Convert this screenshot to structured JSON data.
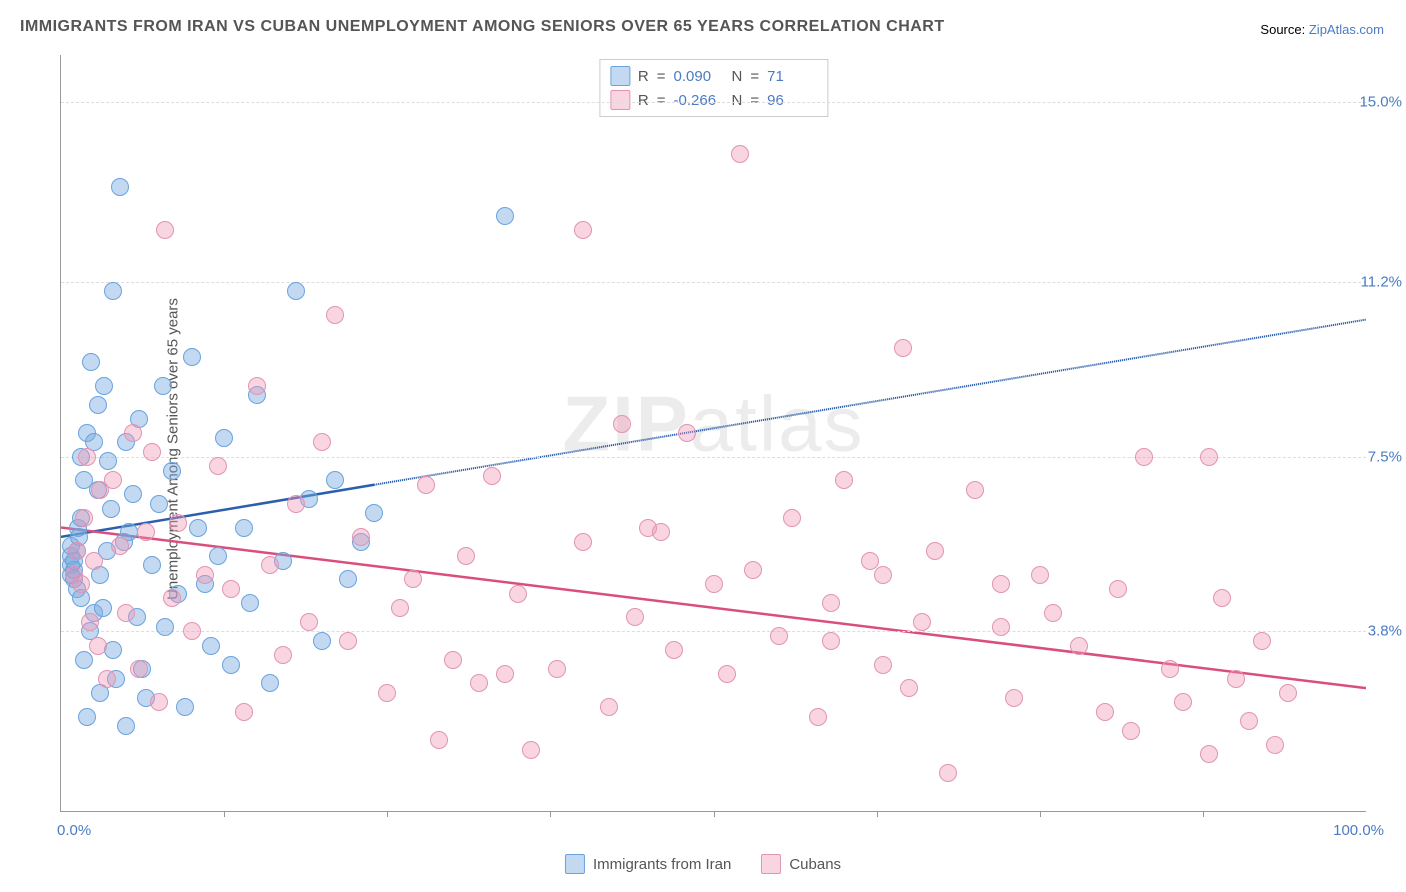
{
  "title": "IMMIGRANTS FROM IRAN VS CUBAN UNEMPLOYMENT AMONG SENIORS OVER 65 YEARS CORRELATION CHART",
  "source_label": "Source:",
  "source_link_text": "ZipAtlas.com",
  "watermark": "ZIPatlas",
  "chart": {
    "type": "scatter",
    "background_color": "#ffffff",
    "grid_color": "#dddddd",
    "axis_color": "#999999",
    "point_radius": 9,
    "point_opacity": 0.55,
    "xlim": [
      0,
      100
    ],
    "ylim": [
      0,
      16
    ],
    "y_gridlines": [
      3.8,
      7.5,
      11.2,
      15.0
    ],
    "y_tick_labels": [
      "3.8%",
      "7.5%",
      "11.2%",
      "15.0%"
    ],
    "x_tick_positions": [
      12.5,
      25,
      37.5,
      50,
      62.5,
      75,
      87.5
    ],
    "x_min_label": "0.0%",
    "x_max_label": "100.0%",
    "y_axis_title": "Unemployment Among Seniors over 65 years",
    "series": [
      {
        "key": "iran",
        "label": "Immigrants from Iran",
        "color_fill": "rgba(120,170,225,0.45)",
        "color_stroke": "#6aa3de",
        "line_color": "#2b5fae",
        "R": "0.090",
        "N": "71",
        "trend": {
          "x1": 0,
          "y1": 5.8,
          "x2": 100,
          "y2": 10.4,
          "solid_until_x": 24
        },
        "points": [
          [
            0.8,
            5.0
          ],
          [
            0.8,
            5.2
          ],
          [
            0.8,
            5.4
          ],
          [
            0.8,
            5.6
          ],
          [
            1.0,
            4.9
          ],
          [
            1.0,
            5.1
          ],
          [
            1.0,
            5.3
          ],
          [
            1.2,
            5.5
          ],
          [
            1.2,
            4.7
          ],
          [
            1.3,
            6.0
          ],
          [
            1.4,
            5.8
          ],
          [
            1.5,
            4.5
          ],
          [
            1.5,
            6.2
          ],
          [
            1.8,
            3.2
          ],
          [
            1.8,
            7.0
          ],
          [
            2.0,
            8.0
          ],
          [
            2.0,
            2.0
          ],
          [
            2.2,
            3.8
          ],
          [
            2.3,
            9.5
          ],
          [
            2.5,
            4.2
          ],
          [
            2.5,
            7.8
          ],
          [
            2.8,
            8.6
          ],
          [
            3.0,
            5.0
          ],
          [
            3.0,
            2.5
          ],
          [
            3.2,
            4.3
          ],
          [
            3.3,
            9.0
          ],
          [
            3.5,
            5.5
          ],
          [
            3.8,
            6.4
          ],
          [
            4.0,
            3.4
          ],
          [
            4.0,
            11.0
          ],
          [
            4.2,
            2.8
          ],
          [
            4.5,
            13.2
          ],
          [
            5.0,
            1.8
          ],
          [
            5.0,
            7.8
          ],
          [
            5.2,
            5.9
          ],
          [
            5.5,
            6.7
          ],
          [
            5.8,
            4.1
          ],
          [
            6.0,
            8.3
          ],
          [
            6.5,
            2.4
          ],
          [
            7.0,
            5.2
          ],
          [
            7.5,
            6.5
          ],
          [
            8.0,
            3.9
          ],
          [
            8.5,
            7.2
          ],
          [
            9.0,
            4.6
          ],
          [
            9.5,
            2.2
          ],
          [
            10.0,
            9.6
          ],
          [
            10.5,
            6.0
          ],
          [
            11.0,
            4.8
          ],
          [
            11.5,
            3.5
          ],
          [
            12.0,
            5.4
          ],
          [
            12.5,
            7.9
          ],
          [
            13.0,
            3.1
          ],
          [
            14.0,
            6.0
          ],
          [
            14.5,
            4.4
          ],
          [
            15.0,
            8.8
          ],
          [
            16.0,
            2.7
          ],
          [
            17.0,
            5.3
          ],
          [
            18.0,
            11.0
          ],
          [
            19.0,
            6.6
          ],
          [
            20.0,
            3.6
          ],
          [
            21.0,
            7.0
          ],
          [
            22.0,
            4.9
          ],
          [
            23.0,
            5.7
          ],
          [
            24.0,
            6.3
          ],
          [
            1.5,
            7.5
          ],
          [
            2.8,
            6.8
          ],
          [
            3.6,
            7.4
          ],
          [
            4.8,
            5.7
          ],
          [
            6.2,
            3.0
          ],
          [
            7.8,
            9.0
          ],
          [
            34.0,
            12.6
          ]
        ]
      },
      {
        "key": "cubans",
        "label": "Cubans",
        "color_fill": "rgba(240,150,180,0.40)",
        "color_stroke": "#e194b2",
        "line_color": "#d94e7c",
        "R": "-0.266",
        "N": "96",
        "trend": {
          "x1": 0,
          "y1": 6.0,
          "x2": 100,
          "y2": 2.6,
          "solid_until_x": 100
        },
        "points": [
          [
            1.0,
            5.0
          ],
          [
            1.2,
            5.5
          ],
          [
            1.5,
            4.8
          ],
          [
            1.8,
            6.2
          ],
          [
            2.0,
            7.5
          ],
          [
            2.2,
            4.0
          ],
          [
            2.5,
            5.3
          ],
          [
            2.8,
            3.5
          ],
          [
            3.0,
            6.8
          ],
          [
            3.5,
            2.8
          ],
          [
            4.0,
            7.0
          ],
          [
            4.5,
            5.6
          ],
          [
            5.0,
            4.2
          ],
          [
            5.5,
            8.0
          ],
          [
            6.0,
            3.0
          ],
          [
            6.5,
            5.9
          ],
          [
            7.0,
            7.6
          ],
          [
            7.5,
            2.3
          ],
          [
            8.0,
            12.3
          ],
          [
            8.5,
            4.5
          ],
          [
            9.0,
            6.1
          ],
          [
            10.0,
            3.8
          ],
          [
            11.0,
            5.0
          ],
          [
            12.0,
            7.3
          ],
          [
            13.0,
            4.7
          ],
          [
            14.0,
            2.1
          ],
          [
            15.0,
            9.0
          ],
          [
            16.0,
            5.2
          ],
          [
            17.0,
            3.3
          ],
          [
            18.0,
            6.5
          ],
          [
            19.0,
            4.0
          ],
          [
            20.0,
            7.8
          ],
          [
            21.0,
            10.5
          ],
          [
            22.0,
            3.6
          ],
          [
            23.0,
            5.8
          ],
          [
            25.0,
            2.5
          ],
          [
            26.0,
            4.3
          ],
          [
            28.0,
            6.9
          ],
          [
            29.0,
            1.5
          ],
          [
            30.0,
            3.2
          ],
          [
            31.0,
            5.4
          ],
          [
            32.0,
            2.7
          ],
          [
            33.0,
            7.1
          ],
          [
            35.0,
            4.6
          ],
          [
            36.0,
            1.3
          ],
          [
            38.0,
            3.0
          ],
          [
            40.0,
            12.3
          ],
          [
            40.0,
            5.7
          ],
          [
            42.0,
            2.2
          ],
          [
            43.0,
            8.2
          ],
          [
            44.0,
            4.1
          ],
          [
            45.0,
            6.0
          ],
          [
            47.0,
            3.4
          ],
          [
            48.0,
            8.0
          ],
          [
            50.0,
            4.8
          ],
          [
            51.0,
            2.9
          ],
          [
            52.0,
            13.9
          ],
          [
            53.0,
            5.1
          ],
          [
            55.0,
            3.7
          ],
          [
            56.0,
            6.2
          ],
          [
            58.0,
            2.0
          ],
          [
            59.0,
            4.4
          ],
          [
            60.0,
            7.0
          ],
          [
            62.0,
            5.3
          ],
          [
            63.0,
            3.1
          ],
          [
            64.5,
            9.8
          ],
          [
            65.0,
            2.6
          ],
          [
            66.0,
            4.0
          ],
          [
            67.0,
            5.5
          ],
          [
            68.0,
            0.8
          ],
          [
            70.0,
            6.8
          ],
          [
            72.0,
            3.9
          ],
          [
            73.0,
            2.4
          ],
          [
            75.0,
            5.0
          ],
          [
            76.0,
            4.2
          ],
          [
            78.0,
            3.5
          ],
          [
            80.0,
            2.1
          ],
          [
            81.0,
            4.7
          ],
          [
            82.0,
            1.7
          ],
          [
            83.0,
            7.5
          ],
          [
            85.0,
            3.0
          ],
          [
            86.0,
            2.3
          ],
          [
            88.0,
            1.2
          ],
          [
            89.0,
            4.5
          ],
          [
            90.0,
            2.8
          ],
          [
            91.0,
            1.9
          ],
          [
            92.0,
            3.6
          ],
          [
            93.0,
            1.4
          ],
          [
            94.0,
            2.5
          ],
          [
            88.0,
            7.5
          ],
          [
            72.0,
            4.8
          ],
          [
            59.0,
            3.6
          ],
          [
            63.0,
            5.0
          ],
          [
            46.0,
            5.9
          ],
          [
            34.0,
            2.9
          ],
          [
            27.0,
            4.9
          ]
        ]
      }
    ]
  },
  "stats_legend": {
    "R_label": "R",
    "N_label": "N",
    "eq": "="
  }
}
